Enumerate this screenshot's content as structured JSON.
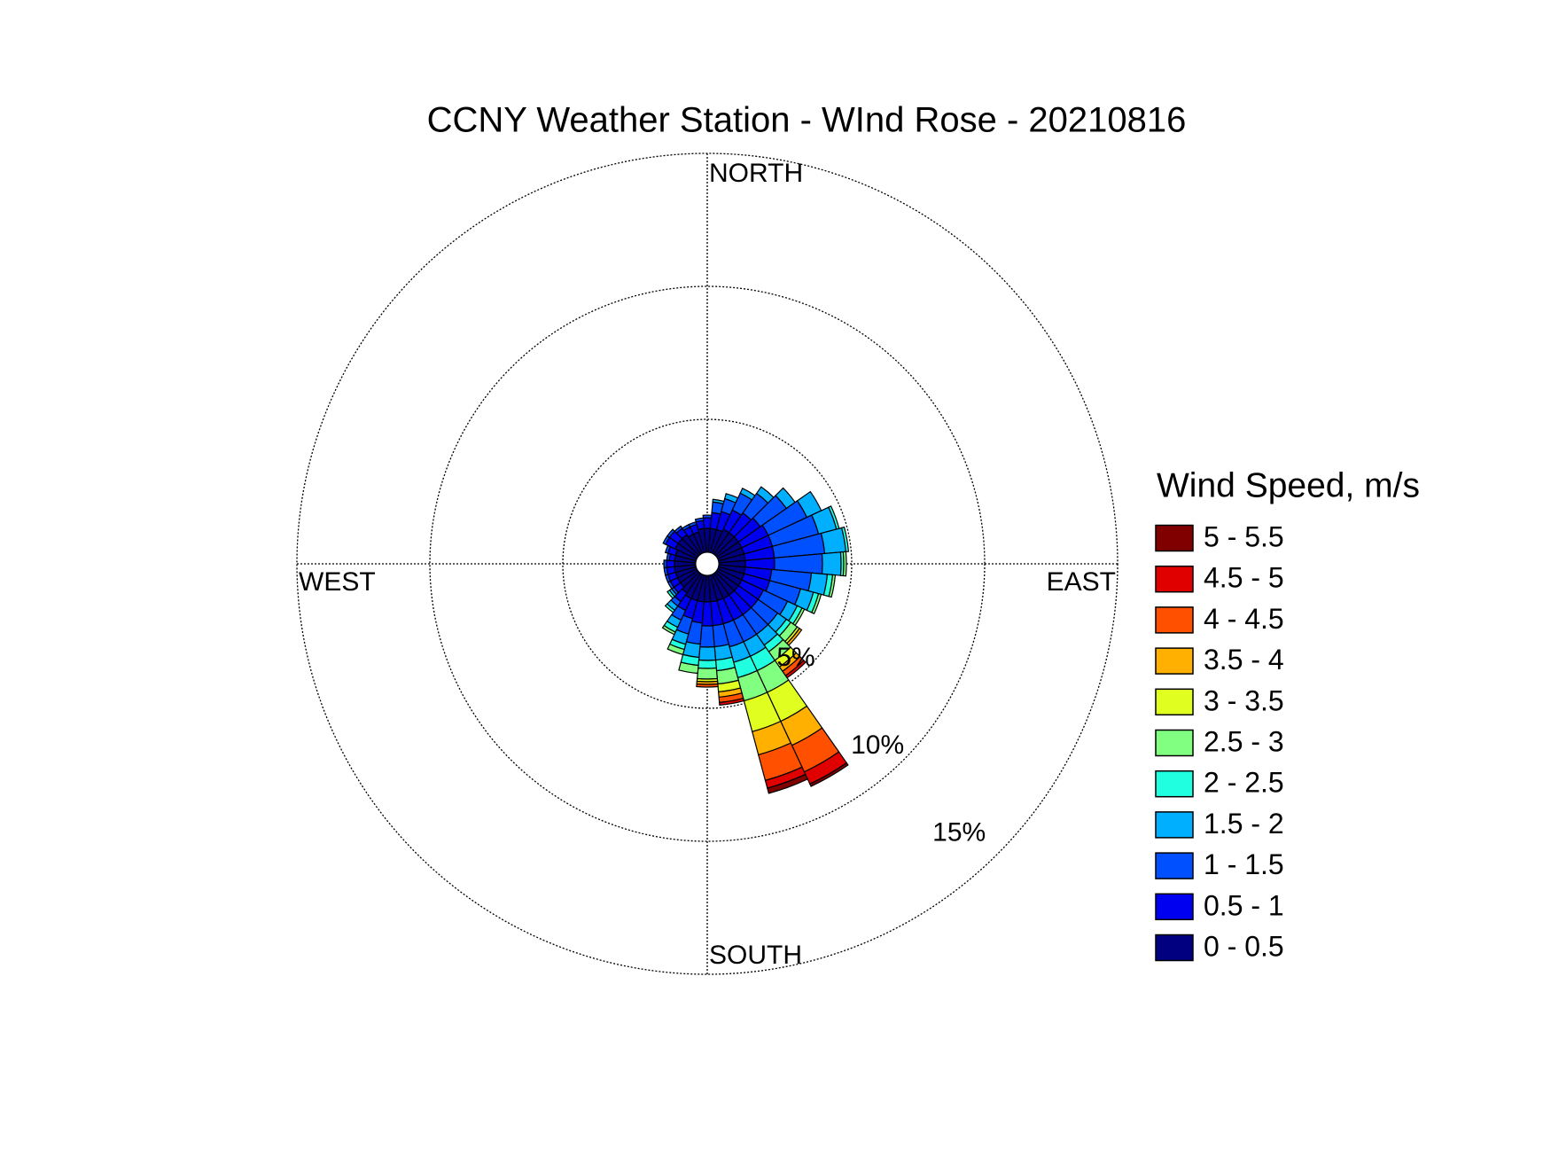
{
  "chart_data": {
    "type": "windrose",
    "title": "CCNY Weather Station - WInd Rose - 20210816",
    "direction_labels": [
      "NORTH",
      "EAST",
      "SOUTH",
      "WEST"
    ],
    "legend_title": "Wind Speed, m/s",
    "directions": [
      0,
      10,
      20,
      30,
      40,
      50,
      60,
      70,
      80,
      90,
      100,
      110,
      120,
      130,
      140,
      150,
      160,
      170,
      180,
      190,
      200,
      210,
      220,
      230,
      240,
      250,
      260,
      270,
      280,
      290,
      300,
      310,
      320,
      330,
      340,
      350
    ],
    "rlim": [
      0,
      15
    ],
    "rticks": [
      {
        "value": 5,
        "label": "5%"
      },
      {
        "value": 10,
        "label": "10%"
      },
      {
        "value": 15,
        "label": "15%"
      }
    ],
    "series": [
      {
        "name": "5 - 5.5",
        "color": "#800000",
        "values": [
          0,
          0,
          0,
          0,
          0,
          0,
          0,
          0,
          0,
          0,
          0,
          0,
          0,
          0,
          0,
          0.1,
          0.2,
          0,
          0,
          0,
          0,
          0,
          0,
          0,
          0,
          0,
          0,
          0,
          0,
          0,
          0,
          0,
          0,
          0,
          0,
          0
        ]
      },
      {
        "name": "4.5 - 5",
        "color": "#e00000",
        "values": [
          0,
          0,
          0,
          0,
          0,
          0,
          0,
          0,
          0,
          0,
          0,
          0,
          0,
          0,
          0.1,
          0.5,
          0.3,
          0.1,
          0,
          0,
          0,
          0,
          0,
          0,
          0,
          0,
          0,
          0,
          0,
          0,
          0,
          0,
          0,
          0,
          0,
          0
        ]
      },
      {
        "name": "4 - 4.5",
        "color": "#ff5000",
        "values": [
          0,
          0,
          0,
          0,
          0,
          0,
          0,
          0,
          0,
          0,
          0,
          0,
          0,
          0,
          0.2,
          1.1,
          1.0,
          0.2,
          0.1,
          0,
          0,
          0,
          0,
          0,
          0,
          0,
          0,
          0,
          0,
          0,
          0,
          0,
          0,
          0,
          0,
          0
        ]
      },
      {
        "name": "3.5 - 4",
        "color": "#ffb000",
        "values": [
          0,
          0,
          0,
          0,
          0,
          0,
          0,
          0,
          0,
          0,
          0,
          0,
          0,
          0.1,
          0.2,
          1.0,
          0.9,
          0.2,
          0.1,
          0,
          0,
          0,
          0,
          0,
          0,
          0,
          0,
          0,
          0,
          0,
          0,
          0,
          0,
          0,
          0,
          0
        ]
      },
      {
        "name": "3 - 3.5",
        "color": "#e0ff20",
        "values": [
          0,
          0,
          0,
          0,
          0,
          0,
          0,
          0,
          0,
          0,
          0,
          0,
          0,
          0.1,
          0.3,
          1.2,
          1.2,
          0.3,
          0.1,
          0,
          0,
          0,
          0,
          0,
          0,
          0,
          0,
          0,
          0,
          0,
          0,
          0,
          0,
          0,
          0,
          0
        ]
      },
      {
        "name": "2.5 - 3",
        "color": "#80ff80",
        "values": [
          0,
          0,
          0,
          0,
          0,
          0,
          0,
          0,
          0,
          0.1,
          0.1,
          0.1,
          0.1,
          0.3,
          0.4,
          0.9,
          0.9,
          0.5,
          0.4,
          0.3,
          0.2,
          0.1,
          0,
          0,
          0,
          0,
          0,
          0,
          0,
          0,
          0,
          0,
          0,
          0,
          0,
          0
        ]
      },
      {
        "name": "2 - 2.5",
        "color": "#20ffe0",
        "values": [
          0,
          0,
          0,
          0,
          0,
          0,
          0,
          0.1,
          0.1,
          0.1,
          0.2,
          0.2,
          0.2,
          0.2,
          0.3,
          0.6,
          0.6,
          0.4,
          0.3,
          0.3,
          0.2,
          0.2,
          0.1,
          0.1,
          0,
          0,
          0,
          0,
          0,
          0,
          0,
          0,
          0,
          0,
          0,
          0
        ]
      },
      {
        "name": "1.5 - 2",
        "color": "#00b0ff",
        "values": [
          0,
          0.1,
          0.2,
          0.2,
          0.3,
          0.4,
          0.6,
          0.7,
          0.8,
          0.7,
          0.6,
          0.5,
          0.4,
          0.4,
          0.5,
          0.6,
          0.6,
          0.5,
          0.5,
          0.5,
          0.4,
          0.3,
          0.2,
          0.1,
          0,
          0,
          0,
          0,
          0,
          0,
          0,
          0,
          0,
          0,
          0,
          0
        ]
      },
      {
        "name": "1 - 1.5",
        "color": "#0050ff",
        "values": [
          0.1,
          0.4,
          0.5,
          0.7,
          0.9,
          1.2,
          1.6,
          1.8,
          1.9,
          1.8,
          1.5,
          1.2,
          1,
          0.9,
          0.9,
          0.9,
          0.9,
          0.8,
          0.8,
          0.8,
          0.6,
          0.4,
          0.2,
          0.1,
          0.1,
          0.1,
          0.1,
          0.1,
          0.1,
          0.1,
          0.1,
          0.1,
          0.1,
          0.1,
          0.1,
          0.1
        ]
      },
      {
        "name": "0.5 - 1",
        "color": "#0000f0",
        "values": [
          0.4,
          0.6,
          0.7,
          0.8,
          0.9,
          1,
          1.1,
          1.1,
          1.1,
          1.1,
          1,
          1,
          0.9,
          0.9,
          0.9,
          0.9,
          0.9,
          0.9,
          0.9,
          0.8,
          0.7,
          0.5,
          0.4,
          0.3,
          0.3,
          0.3,
          0.3,
          0.3,
          0.2,
          0.3,
          0.4,
          0.4,
          0.3,
          0.3,
          0.3,
          0.3
        ]
      },
      {
        "name": "0 - 0.5",
        "color": "#000080",
        "values": [
          0.9,
          0.9,
          0.9,
          1,
          1,
          1,
          1,
          1,
          1,
          1,
          1,
          1,
          1,
          1,
          1,
          1,
          1,
          1,
          1,
          1,
          1,
          1,
          0.9,
          0.8,
          0.8,
          0.8,
          0.8,
          0.8,
          0.8,
          0.8,
          0.9,
          0.9,
          0.9,
          0.8,
          0.8,
          0.9
        ]
      }
    ]
  }
}
